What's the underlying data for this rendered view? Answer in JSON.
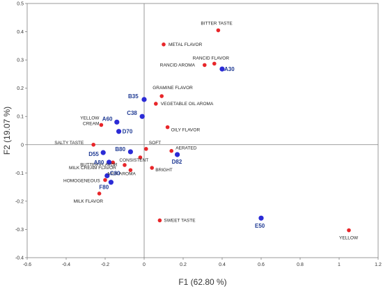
{
  "chart_data": {
    "type": "scatter",
    "xlabel": "F1 (62.80 %)",
    "ylabel": "F2 (19.07 %)",
    "xlim": [
      -0.6,
      1.2
    ],
    "ylim": [
      -0.4,
      0.5
    ],
    "x_ticks": [
      "-0.6",
      "-0.4",
      "-0.2",
      "0",
      "0.2",
      "0.4",
      "0.6",
      "0.8",
      "1",
      "1.2"
    ],
    "y_ticks": [
      "-0.4",
      "-0.3",
      "-0.2",
      "-0.1",
      "0",
      "0.1",
      "0.2",
      "0.3",
      "0.4",
      "0.5"
    ],
    "grid": false,
    "series": [
      {
        "color": "#e8262a",
        "points": [
          {
            "label": "BITTER TASTE",
            "x": 0.38,
            "y": 0.405
          },
          {
            "label": "METAL FLAVOR",
            "x": 0.1,
            "y": 0.355
          },
          {
            "label": "RANCID FLAVOR",
            "x": 0.36,
            "y": 0.287
          },
          {
            "label": "RANCID AROMA",
            "x": 0.31,
            "y": 0.282
          },
          {
            "label": "GRAMINE FLAVOR",
            "x": 0.09,
            "y": 0.172
          },
          {
            "label": "VEGETABLE OIL AROMA",
            "x": 0.06,
            "y": 0.145
          },
          {
            "label": "YELLOW CREAM",
            "x": -0.22,
            "y": 0.07
          },
          {
            "label": "OILY FLAVOR",
            "x": 0.12,
            "y": 0.062
          },
          {
            "label": "SALTY TASTE",
            "x": -0.26,
            "y": 0.0
          },
          {
            "label": "SOFT",
            "x": 0.01,
            "y": -0.015
          },
          {
            "label": "AERATED",
            "x": 0.14,
            "y": -0.022
          },
          {
            "label": "CONSISTENT",
            "x": -0.02,
            "y": -0.045
          },
          {
            "label": "BUTTER FLAVOR",
            "x": -0.16,
            "y": -0.063
          },
          {
            "label": "MILK CREAM FLAVOR",
            "x": -0.1,
            "y": -0.072
          },
          {
            "label": "BRIGHT",
            "x": 0.04,
            "y": -0.082
          },
          {
            "label": "MILK AROMA",
            "x": -0.07,
            "y": -0.09
          },
          {
            "label": "HOMOGENEOUS",
            "x": -0.2,
            "y": -0.125
          },
          {
            "label": "MILK FLAVOR",
            "x": -0.23,
            "y": -0.173
          },
          {
            "label": "SWEET TASTE",
            "x": 0.08,
            "y": -0.268
          },
          {
            "label": "YELLOW",
            "x": 1.05,
            "y": -0.303
          }
        ]
      },
      {
        "color": "#2b2bd6",
        "points": [
          {
            "label": "A30",
            "x": 0.4,
            "y": 0.268
          },
          {
            "label": "B35",
            "x": 0.0,
            "y": 0.16
          },
          {
            "label": "C38",
            "x": -0.01,
            "y": 0.1
          },
          {
            "label": "A60",
            "x": -0.14,
            "y": 0.08
          },
          {
            "label": "D70",
            "x": -0.13,
            "y": 0.047
          },
          {
            "label": "D55",
            "x": -0.21,
            "y": -0.028
          },
          {
            "label": "B80",
            "x": -0.07,
            "y": -0.025
          },
          {
            "label": "D82",
            "x": 0.17,
            "y": -0.035
          },
          {
            "label": "A80",
            "x": -0.18,
            "y": -0.062
          },
          {
            "label": "C80",
            "x": -0.19,
            "y": -0.11
          },
          {
            "label": "F80",
            "x": -0.17,
            "y": -0.133
          },
          {
            "label": "E50",
            "x": 0.6,
            "y": -0.26
          }
        ]
      }
    ]
  }
}
